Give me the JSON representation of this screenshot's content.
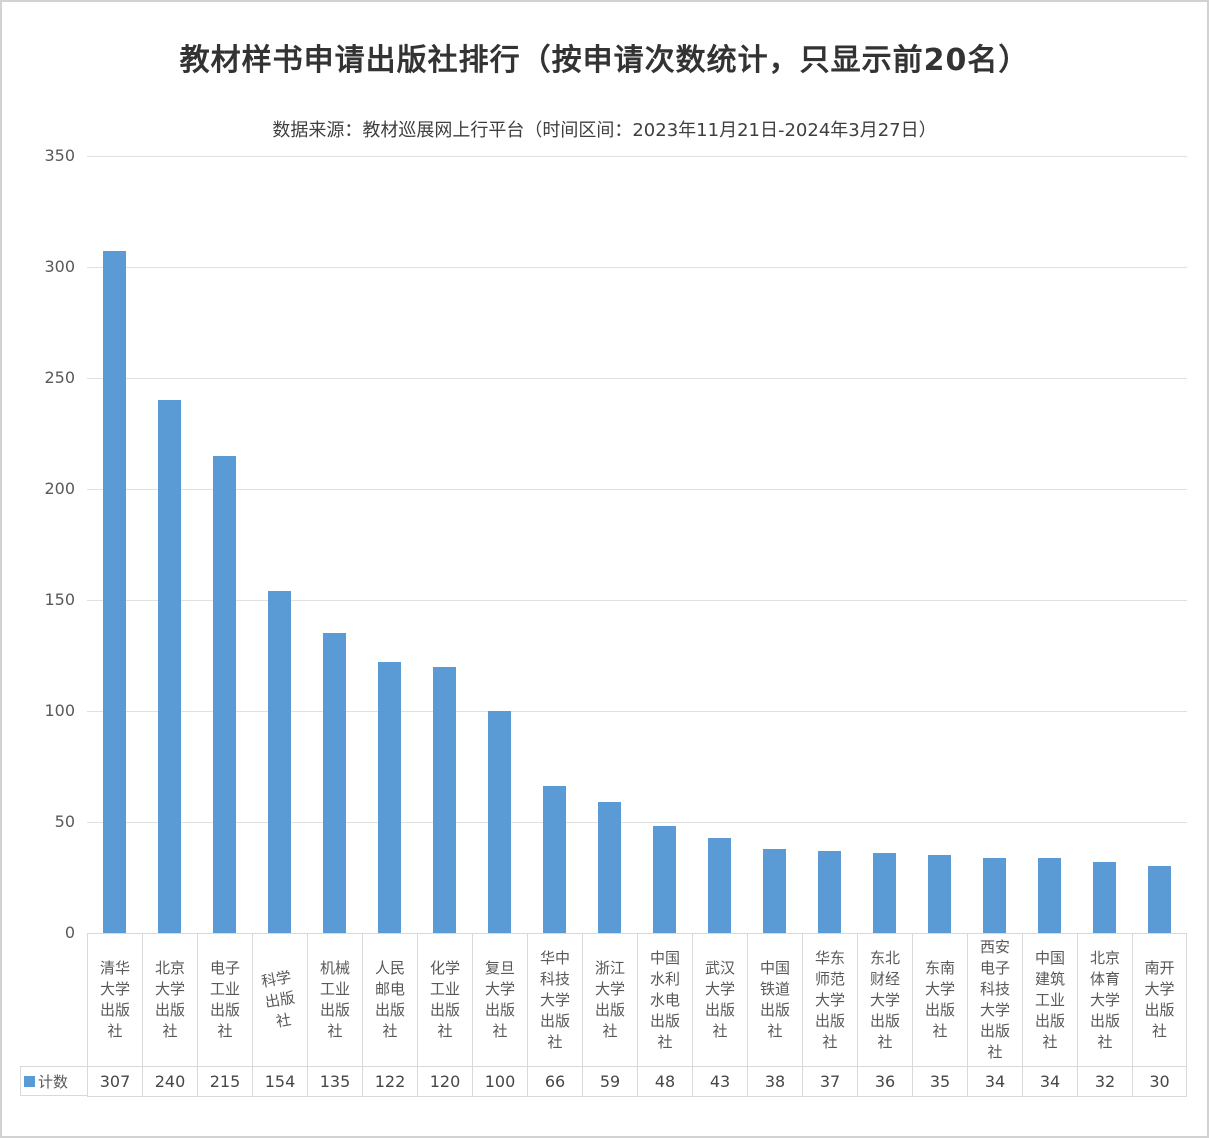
{
  "chart_data": {
    "type": "bar",
    "title": "教材样书申请出版社排行（按申请次数统计，只显示前20名）",
    "subtitle": "数据来源：教材巡展网上行平台（时间区间：2023年11月21日-2024年3月27日）",
    "series_name": "计数",
    "categories": [
      "清华大学出版社",
      "北京大学出版社",
      "电子工业出版社",
      "科学出版社",
      "机械工业出版社",
      "人民邮电出版社",
      "化学工业出版社",
      "复旦大学出版社",
      "华中科技大学出版社",
      "浙江大学出版社",
      "中国水利水电出版社",
      "武汉大学出版社",
      "中国铁道出版社",
      "华东师范大学出版社",
      "东北财经大学出版社",
      "东南大学出版社",
      "西安电子科技大学出版社",
      "中国建筑工业出版社",
      "北京体育大学出版社",
      "南开大学出版社"
    ],
    "values": [
      307,
      240,
      215,
      154,
      135,
      122,
      120,
      100,
      66,
      59,
      48,
      43,
      38,
      37,
      36,
      35,
      34,
      34,
      32,
      30
    ],
    "ylim": [
      0,
      350
    ],
    "yticks": [
      0,
      50,
      100,
      150,
      200,
      250,
      300,
      350
    ],
    "grid": true,
    "legend_position": "data-table-left",
    "bar_color": "#5B9BD5"
  }
}
